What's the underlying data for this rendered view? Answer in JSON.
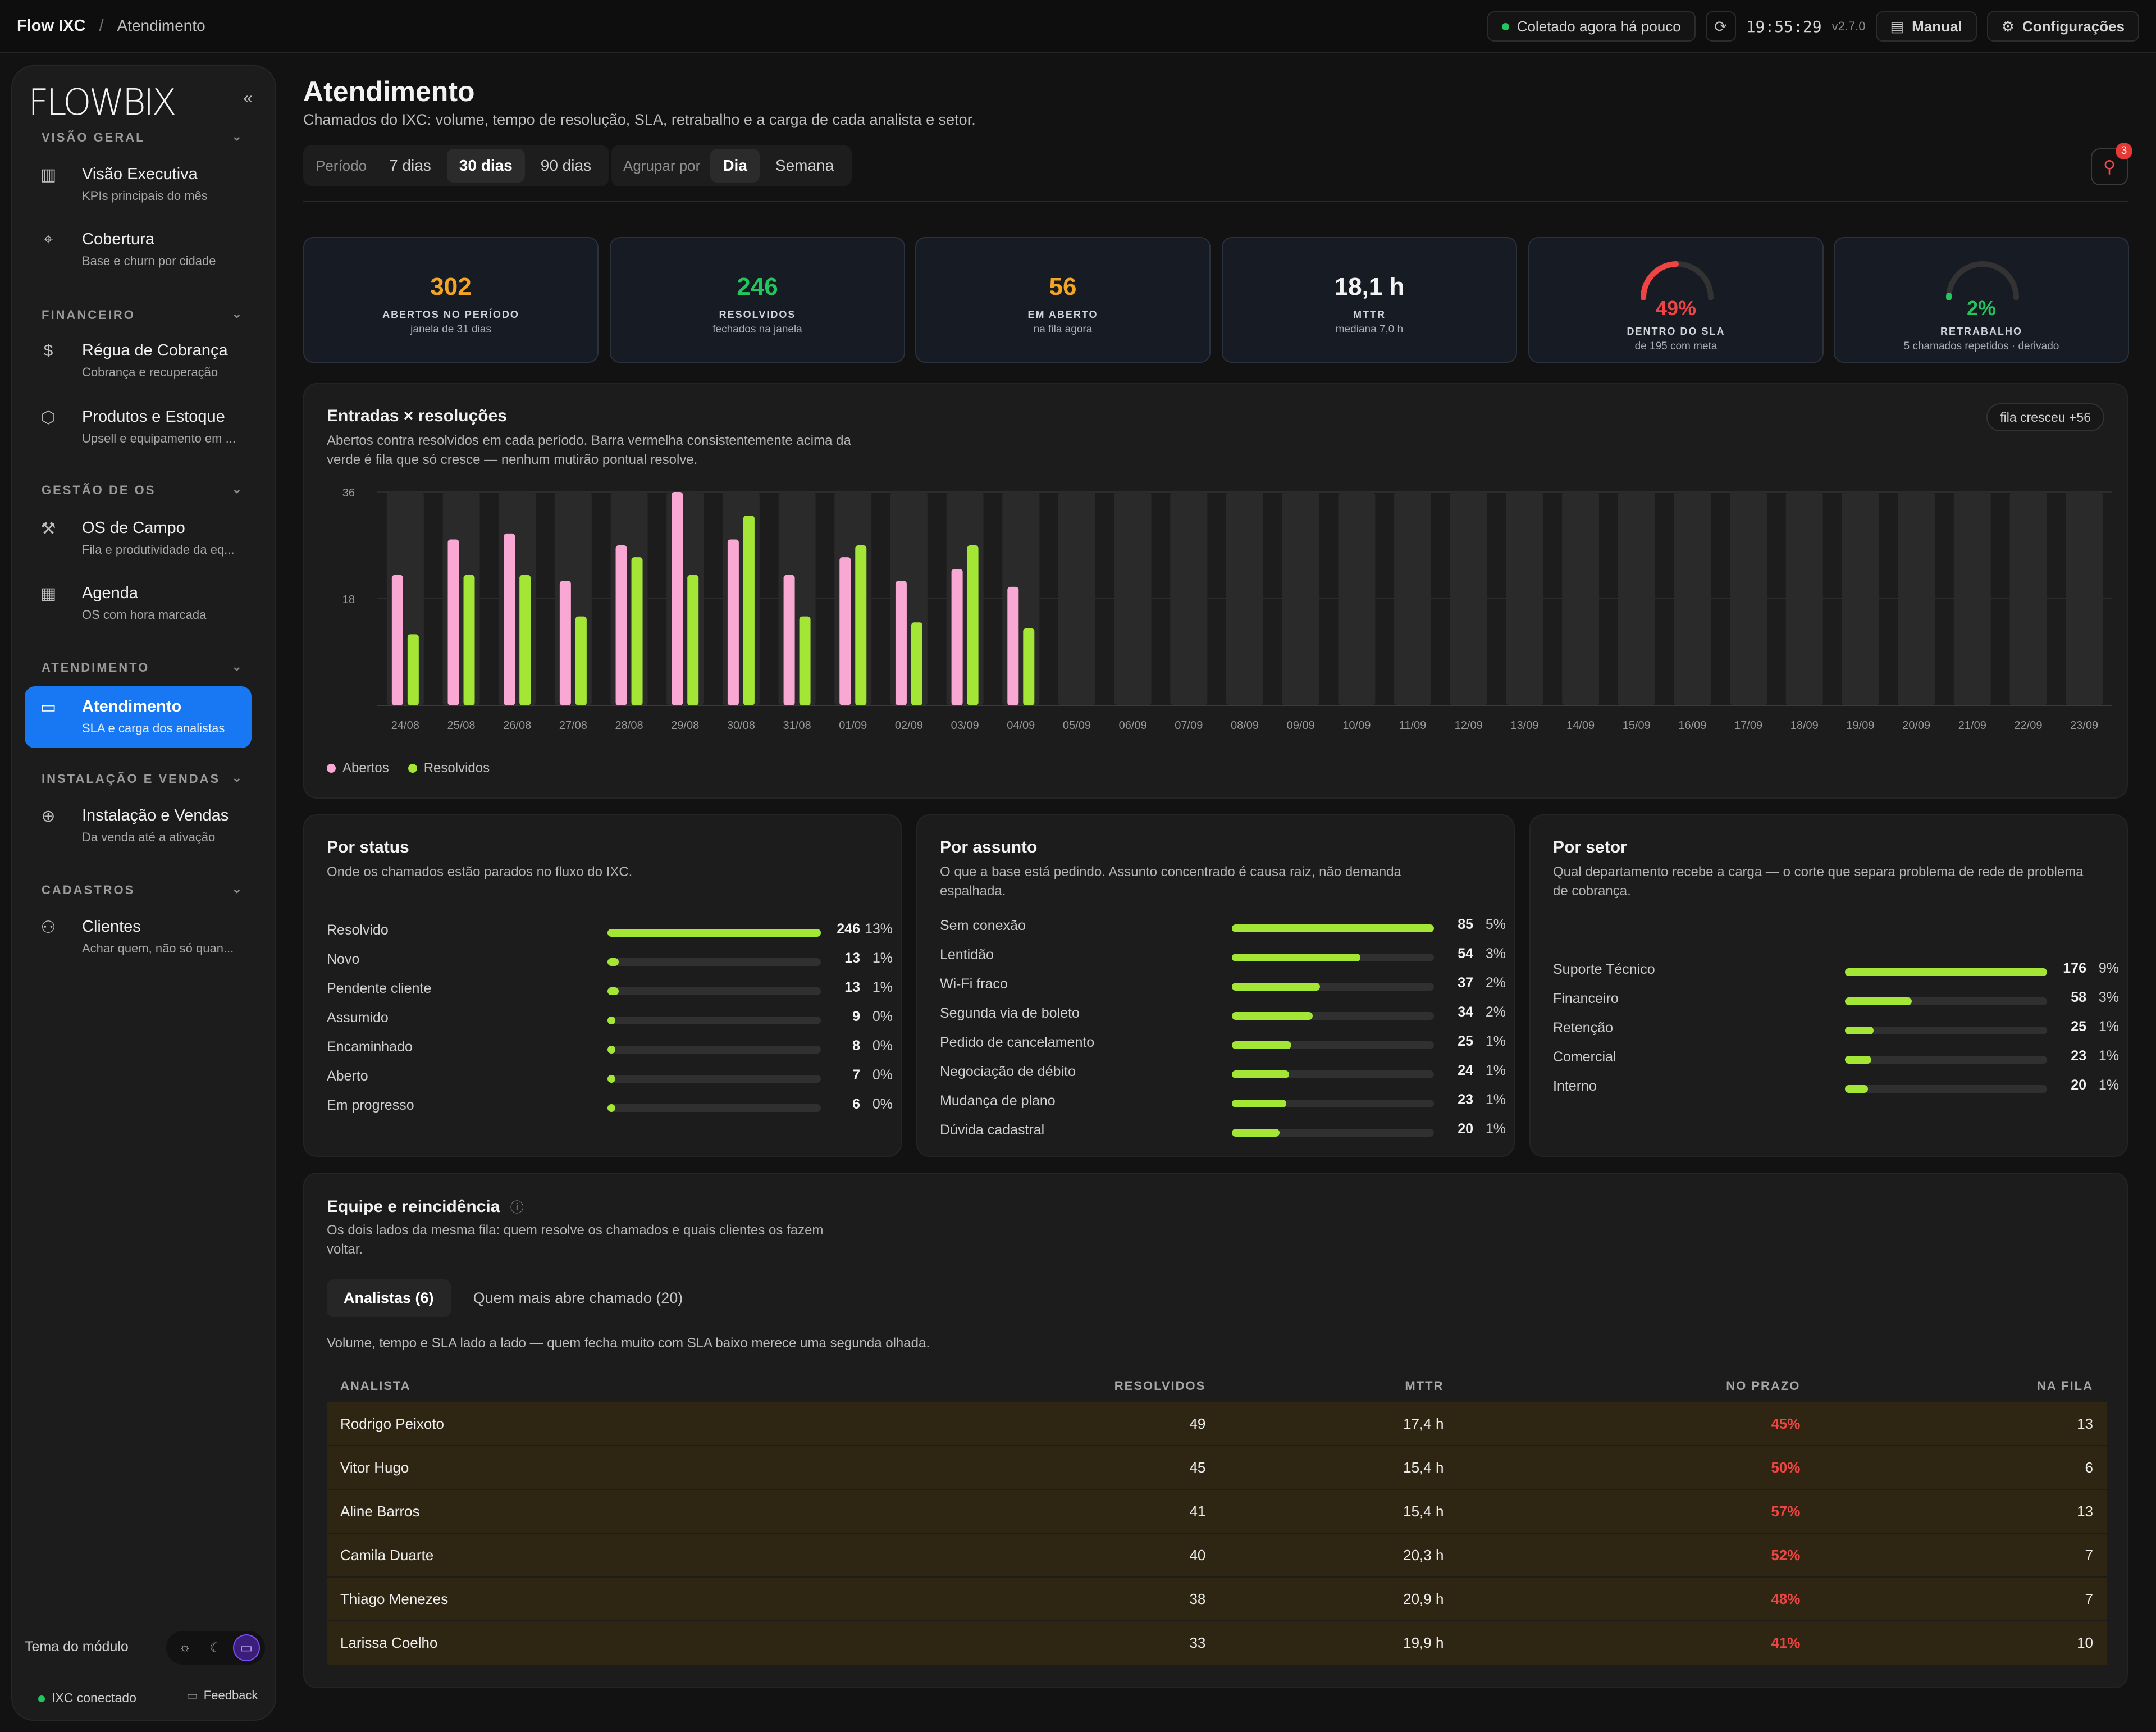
{
  "topbar": {
    "app": "Flow IXC",
    "separator": "/",
    "page": "Atendimento",
    "status": "Coletado agora há pouco",
    "time": "19:55:29",
    "version": "v2.7.0",
    "manual": "Manual",
    "settings": "Configurações"
  },
  "sidebar": {
    "logo": "FLOWBIX",
    "collapse": "«",
    "sections": [
      {
        "label": "VISÃO GERAL"
      },
      {
        "label": "FINANCEIRO"
      },
      {
        "label": "GESTÃO DE OS"
      },
      {
        "label": "ATENDIMENTO"
      },
      {
        "label": "INSTALAÇÃO E VENDAS"
      },
      {
        "label": "CADASTROS"
      }
    ],
    "items": [
      {
        "title": "Visão Executiva",
        "sub": "KPIs principais do mês"
      },
      {
        "title": "Cobertura",
        "sub": "Base e churn por cidade"
      },
      {
        "title": "Régua de Cobrança",
        "sub": "Cobrança e recuperação"
      },
      {
        "title": "Produtos e Estoque",
        "sub": "Upsell e equipamento em ..."
      },
      {
        "title": "OS de Campo",
        "sub": "Fila e produtividade da eq..."
      },
      {
        "title": "Agenda",
        "sub": "OS com hora marcada"
      },
      {
        "title": "Atendimento",
        "sub": "SLA e carga dos analistas"
      },
      {
        "title": "Instalação e Vendas",
        "sub": "Da venda até a ativação"
      },
      {
        "title": "Clientes",
        "sub": "Achar quem, não só quan..."
      }
    ],
    "theme_label": "Tema do módulo",
    "connection": "IXC conectado",
    "feedback": "Feedback"
  },
  "header": {
    "title": "Atendimento",
    "subtitle": "Chamados do IXC: volume, tempo de resolução, SLA, retrabalho e a carga de cada analista e setor.",
    "period_label": "Período",
    "periods": [
      "7 dias",
      "30 dias",
      "90 dias"
    ],
    "period_selected": "30 dias",
    "group_label": "Agrupar por",
    "groups": [
      "Dia",
      "Semana"
    ],
    "group_selected": "Dia",
    "alerts_count": "3"
  },
  "kpis": [
    {
      "value": "302",
      "label": "ABERTOS NO PERÍODO",
      "sub": "janela de 31 dias",
      "color": "#f5a524"
    },
    {
      "value": "246",
      "label": "RESOLVIDOS",
      "sub": "fechados na janela",
      "color": "#22c55e"
    },
    {
      "value": "56",
      "label": "EM ABERTO",
      "sub": "na fila agora",
      "color": "#f5a524"
    },
    {
      "value": "18,1 h",
      "label": "MTTR",
      "sub": "mediana 7,0 h",
      "color": "#f2f2f2"
    },
    {
      "value": "49%",
      "label": "DENTRO DO SLA",
      "sub": "de 195 com meta",
      "color": "#ef4444",
      "gauge": 0.49
    },
    {
      "value": "2%",
      "label": "RETRABALHO",
      "sub": "5 chamados repetidos · derivado",
      "color": "#22c55e",
      "gauge": 0.02
    }
  ],
  "flow": {
    "title": "Entradas × resoluções",
    "subtitle_1": "Abertos contra resolvidos em cada período. Barra vermelha consistentemente acima da",
    "subtitle_2": "verde é fila que só cresce — nenhum mutirão pontual resolve.",
    "tag": "fila cresceu +56",
    "legend_open": "Abertos",
    "legend_resolved": "Resolvidos"
  },
  "chart_data": {
    "type": "bar",
    "categories": [
      "24/08",
      "25/08",
      "26/08",
      "27/08",
      "28/08",
      "29/08",
      "30/08",
      "31/08",
      "01/09",
      "02/09",
      "03/09",
      "04/09",
      "05/09",
      "06/09",
      "07/09",
      "08/09",
      "09/09",
      "10/09",
      "11/09",
      "12/09",
      "13/09",
      "14/09",
      "15/09",
      "16/09",
      "17/09",
      "18/09",
      "19/09",
      "20/09",
      "21/09",
      "22/09",
      "23/09"
    ],
    "series": [
      {
        "name": "Abertos",
        "color": "#f9a8d4",
        "values": [
          22,
          28,
          29,
          21,
          27,
          36,
          28,
          22,
          25,
          21,
          23,
          20,
          0,
          0,
          0,
          0,
          0,
          0,
          0,
          0,
          0,
          0,
          0,
          0,
          0,
          0,
          0,
          0,
          0,
          0,
          0
        ]
      },
      {
        "name": "Resolvidos",
        "color": "#a3e635",
        "values": [
          12,
          22,
          22,
          15,
          25,
          22,
          32,
          15,
          27,
          14,
          27,
          13,
          0,
          0,
          0,
          0,
          0,
          0,
          0,
          0,
          0,
          0,
          0,
          0,
          0,
          0,
          0,
          0,
          0,
          0,
          0
        ]
      }
    ],
    "yticks": [
      "36",
      "18"
    ],
    "ylim": [
      0,
      36
    ],
    "grid": true,
    "legend": "bottom-left"
  },
  "status": {
    "title": "Por status",
    "subtitle": "Onde os chamados estão parados no fluxo do IXC.",
    "rows": [
      {
        "label": "Resolvido",
        "value": "246",
        "pct": "13%",
        "frac": 1.0
      },
      {
        "label": "Novo",
        "value": "13",
        "pct": "1%",
        "frac": 0.053
      },
      {
        "label": "Pendente cliente",
        "value": "13",
        "pct": "1%",
        "frac": 0.053
      },
      {
        "label": "Assumido",
        "value": "9",
        "pct": "0%",
        "frac": 0.037
      },
      {
        "label": "Encaminhado",
        "value": "8",
        "pct": "0%",
        "frac": 0.033
      },
      {
        "label": "Aberto",
        "value": "7",
        "pct": "0%",
        "frac": 0.028
      },
      {
        "label": "Em progresso",
        "value": "6",
        "pct": "0%",
        "frac": 0.024
      }
    ]
  },
  "subject": {
    "title": "Por assunto",
    "subtitle_1": "O que a base está pedindo. Assunto concentrado é causa raiz, não demanda",
    "subtitle_2": "espalhada.",
    "rows": [
      {
        "label": "Sem conexão",
        "value": "85",
        "pct": "5%",
        "frac": 1.0
      },
      {
        "label": "Lentidão",
        "value": "54",
        "pct": "3%",
        "frac": 0.635
      },
      {
        "label": "Wi-Fi fraco",
        "value": "37",
        "pct": "2%",
        "frac": 0.435
      },
      {
        "label": "Segunda via de boleto",
        "value": "34",
        "pct": "2%",
        "frac": 0.4
      },
      {
        "label": "Pedido de cancelamento",
        "value": "25",
        "pct": "1%",
        "frac": 0.294
      },
      {
        "label": "Negociação de débito",
        "value": "24",
        "pct": "1%",
        "frac": 0.282
      },
      {
        "label": "Mudança de plano",
        "value": "23",
        "pct": "1%",
        "frac": 0.27
      },
      {
        "label": "Dúvida cadastral",
        "value": "20",
        "pct": "1%",
        "frac": 0.235
      }
    ]
  },
  "sector": {
    "title": "Por setor",
    "subtitle_1": "Qual departamento recebe a carga — o corte que separa problema de rede de problema",
    "subtitle_2": "de cobrança.",
    "rows": [
      {
        "label": "Suporte Técnico",
        "value": "176",
        "pct": "9%",
        "frac": 1.0
      },
      {
        "label": "Financeiro",
        "value": "58",
        "pct": "3%",
        "frac": 0.33
      },
      {
        "label": "Retenção",
        "value": "25",
        "pct": "1%",
        "frac": 0.142
      },
      {
        "label": "Comercial",
        "value": "23",
        "pct": "1%",
        "frac": 0.131
      },
      {
        "label": "Interno",
        "value": "20",
        "pct": "1%",
        "frac": 0.114
      }
    ]
  },
  "team": {
    "title": "Equipe e reincidência",
    "subtitle_1": "Os dois lados da mesma fila: quem resolve os chamados e quais clientes os fazem",
    "subtitle_2": "voltar.",
    "tab_analysts": "Analistas (6)",
    "tab_clients": "Quem mais abre chamado (20)",
    "description": "Volume, tempo e SLA lado a lado — quem fecha muito com SLA baixo merece uma segunda olhada.",
    "columns": [
      "ANALISTA",
      "RESOLVIDOS",
      "MTTR",
      "NO PRAZO",
      "NA FILA"
    ],
    "rows": [
      [
        "Rodrigo Peixoto",
        "49",
        "17,4 h",
        "45%",
        "13"
      ],
      [
        "Vitor Hugo",
        "45",
        "15,4 h",
        "50%",
        "6"
      ],
      [
        "Aline Barros",
        "41",
        "15,4 h",
        "57%",
        "13"
      ],
      [
        "Camila Duarte",
        "40",
        "20,3 h",
        "52%",
        "7"
      ],
      [
        "Thiago Menezes",
        "38",
        "20,9 h",
        "48%",
        "7"
      ],
      [
        "Larissa Coelho",
        "33",
        "19,9 h",
        "41%",
        "10"
      ]
    ]
  }
}
